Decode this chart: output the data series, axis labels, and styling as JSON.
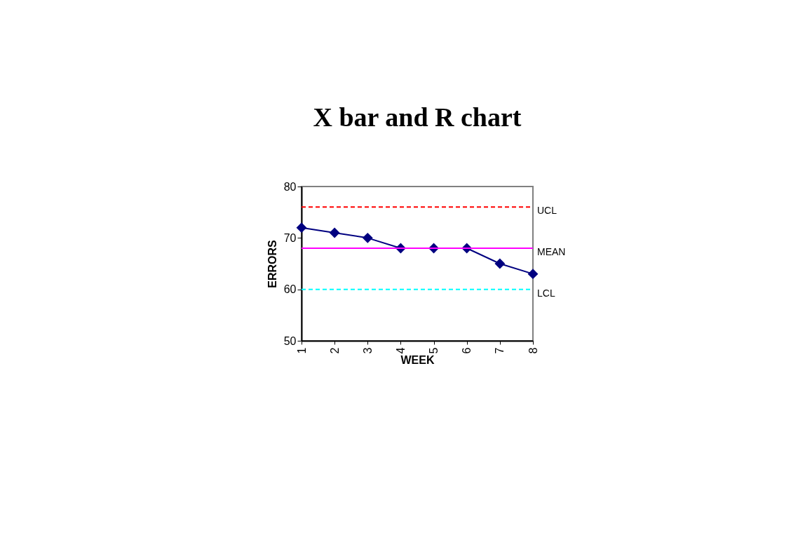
{
  "chart_data": {
    "type": "line",
    "title": "X bar and R chart",
    "xlabel": "WEEK",
    "ylabel": "ERRORS",
    "x": [
      1,
      2,
      3,
      4,
      5,
      6,
      7,
      8
    ],
    "series": [
      {
        "color": "#000080",
        "values": [
          72,
          71,
          70,
          68,
          68,
          68,
          65,
          63
        ]
      }
    ],
    "xlim": [
      1,
      8
    ],
    "xticks": [
      1,
      2,
      3,
      4,
      5,
      6,
      7,
      8
    ],
    "ylim": [
      50,
      80
    ],
    "yticks": [
      50,
      60,
      70,
      80
    ],
    "marker": "diamond",
    "line_style": "solid",
    "grid": false,
    "ref_lines": [
      {
        "axis": "y",
        "value": 76,
        "label": "UCL",
        "color": "#ff0000",
        "line_style": "dashed"
      },
      {
        "axis": "y",
        "value": 68,
        "label": "MEAN",
        "color": "#ff00ff",
        "line_style": "solid"
      },
      {
        "axis": "y",
        "value": 60,
        "label": "LCL",
        "color": "#00ffff",
        "line_style": "dashed"
      }
    ]
  }
}
